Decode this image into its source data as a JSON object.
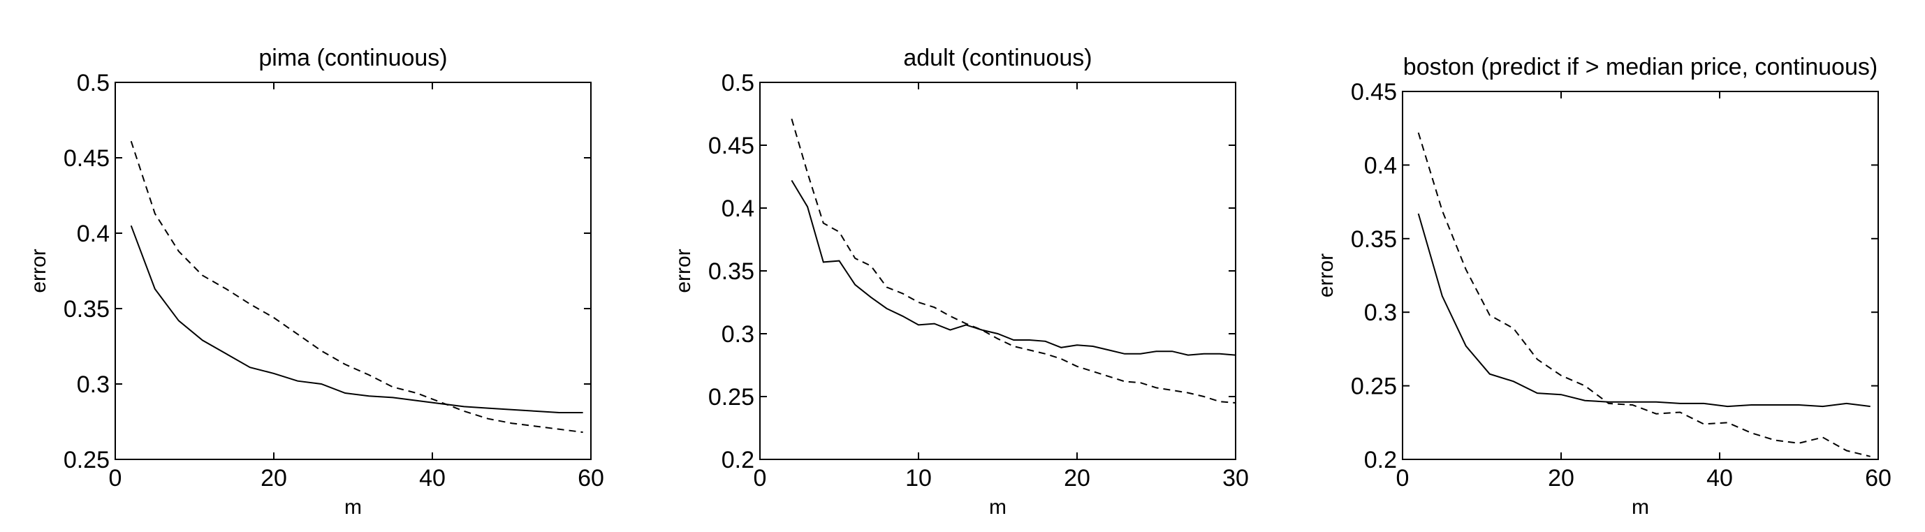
{
  "chart_data": [
    {
      "type": "line",
      "title": "pima (continuous)",
      "xlabel": "m",
      "ylabel": "error",
      "xlim": [
        0,
        60
      ],
      "ylim": [
        0.25,
        0.5
      ],
      "xticks": [
        0,
        20,
        40,
        60
      ],
      "xtick_labels": [
        "0",
        "20",
        "40",
        "60"
      ],
      "yticks": [
        0.25,
        0.3,
        0.35,
        0.4,
        0.45,
        0.5
      ],
      "ytick_labels": [
        "0.25",
        "0.3",
        "0.35",
        "0.4",
        "0.45",
        "0.5"
      ],
      "grid": false,
      "series": [
        {
          "style": "solid",
          "x": [
            2,
            5,
            8,
            11,
            14,
            17,
            20,
            23,
            26,
            29,
            32,
            35,
            38,
            41,
            44,
            47,
            50,
            53,
            56,
            59
          ],
          "values": [
            0.405,
            0.363,
            0.342,
            0.329,
            0.32,
            0.311,
            0.307,
            0.302,
            0.3,
            0.294,
            0.292,
            0.291,
            0.289,
            0.287,
            0.285,
            0.284,
            0.283,
            0.282,
            0.281,
            0.281
          ]
        },
        {
          "style": "dashed",
          "x": [
            2,
            5,
            8,
            11,
            14,
            17,
            20,
            23,
            26,
            29,
            32,
            35,
            38,
            41,
            44,
            47,
            50,
            53,
            56,
            59
          ],
          "values": [
            0.461,
            0.413,
            0.388,
            0.372,
            0.363,
            0.353,
            0.344,
            0.333,
            0.322,
            0.313,
            0.306,
            0.298,
            0.294,
            0.288,
            0.282,
            0.277,
            0.274,
            0.272,
            0.27,
            0.268
          ]
        }
      ]
    },
    {
      "type": "line",
      "title": "adult (continuous)",
      "xlabel": "m",
      "ylabel": "error",
      "xlim": [
        0,
        30
      ],
      "ylim": [
        0.2,
        0.5
      ],
      "xticks": [
        0,
        10,
        20,
        30
      ],
      "xtick_labels": [
        "0",
        "10",
        "20",
        "30"
      ],
      "yticks": [
        0.2,
        0.25,
        0.3,
        0.35,
        0.4,
        0.45,
        0.5
      ],
      "ytick_labels": [
        "0.2",
        "0.25",
        "0.3",
        "0.35",
        "0.4",
        "0.45",
        "0.5"
      ],
      "grid": false,
      "series": [
        {
          "style": "solid",
          "x": [
            2,
            3,
            4,
            5,
            6,
            7,
            8,
            9,
            10,
            11,
            12,
            13,
            14,
            15,
            16,
            17,
            18,
            19,
            20,
            21,
            22,
            23,
            24,
            25,
            26,
            27,
            28,
            29,
            30
          ],
          "values": [
            0.422,
            0.401,
            0.357,
            0.358,
            0.339,
            0.329,
            0.32,
            0.314,
            0.307,
            0.308,
            0.303,
            0.307,
            0.303,
            0.3,
            0.295,
            0.295,
            0.294,
            0.289,
            0.291,
            0.29,
            0.287,
            0.284,
            0.284,
            0.286,
            0.286,
            0.283,
            0.284,
            0.284,
            0.283
          ]
        },
        {
          "style": "dashed",
          "x": [
            2,
            3,
            4,
            5,
            6,
            7,
            8,
            9,
            10,
            11,
            12,
            13,
            14,
            15,
            16,
            17,
            18,
            19,
            20,
            21,
            22,
            23,
            24,
            25,
            26,
            27,
            28,
            29,
            30
          ],
          "values": [
            0.471,
            0.428,
            0.388,
            0.381,
            0.36,
            0.354,
            0.337,
            0.332,
            0.325,
            0.321,
            0.314,
            0.308,
            0.303,
            0.296,
            0.29,
            0.287,
            0.284,
            0.28,
            0.274,
            0.27,
            0.266,
            0.262,
            0.261,
            0.257,
            0.255,
            0.253,
            0.25,
            0.246,
            0.245
          ]
        }
      ]
    },
    {
      "type": "line",
      "title": "boston (predict if > median price, continuous)",
      "xlabel": "m",
      "ylabel": "error",
      "xlim": [
        0,
        60
      ],
      "ylim": [
        0.2,
        0.45
      ],
      "xticks": [
        0,
        20,
        40,
        60
      ],
      "xtick_labels": [
        "0",
        "20",
        "40",
        "60"
      ],
      "yticks": [
        0.2,
        0.25,
        0.3,
        0.35,
        0.4,
        0.45
      ],
      "ytick_labels": [
        "0.2",
        "0.25",
        "0.3",
        "0.35",
        "0.4",
        "0.45"
      ],
      "grid": false,
      "series": [
        {
          "style": "solid",
          "x": [
            2,
            5,
            8,
            11,
            14,
            17,
            20,
            23,
            26,
            29,
            32,
            35,
            38,
            41,
            44,
            47,
            50,
            53,
            56,
            59
          ],
          "values": [
            0.367,
            0.311,
            0.277,
            0.258,
            0.253,
            0.245,
            0.244,
            0.24,
            0.239,
            0.239,
            0.239,
            0.238,
            0.238,
            0.236,
            0.237,
            0.237,
            0.237,
            0.236,
            0.238,
            0.236
          ]
        },
        {
          "style": "dashed",
          "x": [
            2,
            5,
            8,
            11,
            14,
            17,
            20,
            23,
            26,
            29,
            32,
            35,
            38,
            41,
            44,
            47,
            50,
            53,
            56,
            59
          ],
          "values": [
            0.422,
            0.369,
            0.329,
            0.298,
            0.289,
            0.268,
            0.257,
            0.25,
            0.238,
            0.237,
            0.231,
            0.232,
            0.224,
            0.225,
            0.218,
            0.213,
            0.211,
            0.215,
            0.206,
            0.202
          ]
        }
      ]
    }
  ]
}
